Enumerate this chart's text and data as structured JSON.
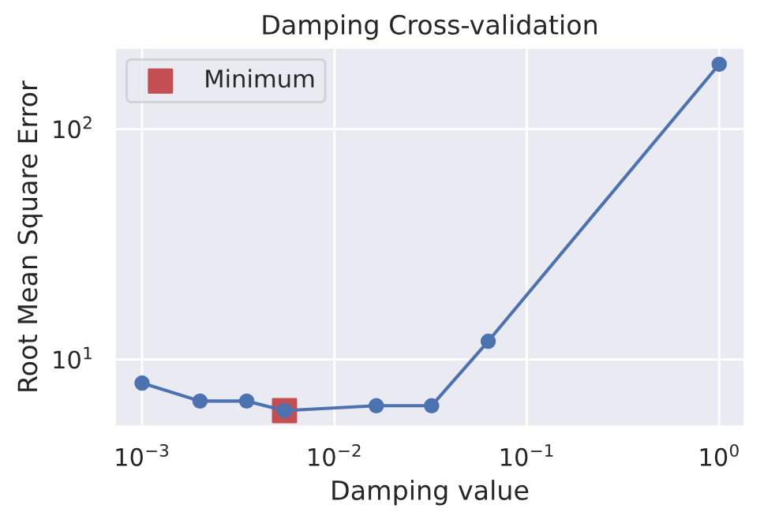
{
  "chart_data": {
    "type": "line",
    "title": "Damping Cross-validation",
    "xlabel": "Damping value",
    "ylabel": "Root Mean Square Error",
    "log": "xy",
    "grid": true,
    "legend": "top left",
    "xlim": [
      0.00072,
      1.36
    ],
    "ylim": [
      5.1,
      226
    ],
    "xticks": [
      {
        "value": 0.001,
        "label": "10$^{−3}$"
      },
      {
        "value": 0.01,
        "label": "10$^{−2}$"
      },
      {
        "value": 0.1,
        "label": "10$^{−1}$"
      },
      {
        "value": 1,
        "label": "10$^{0}$"
      }
    ],
    "yticks": [
      {
        "value": 10,
        "label": "10$^{1}$"
      },
      {
        "value": 100,
        "label": "10$^{2}$"
      }
    ],
    "series": [
      {
        "marker": "circle",
        "color": "#4c72b0",
        "x": [
          0.001,
          0.002,
          0.0035,
          0.0055,
          0.0165,
          0.032,
          0.063,
          1
        ],
        "values": [
          7.9,
          6.6,
          6.6,
          6.0,
          6.3,
          6.3,
          12.0,
          191
        ]
      },
      {
        "type": "scatter",
        "marker": "square",
        "name": "Minimum",
        "color": "#c44e52",
        "x": [
          0.0055
        ],
        "values": [
          6.0
        ]
      }
    ]
  }
}
